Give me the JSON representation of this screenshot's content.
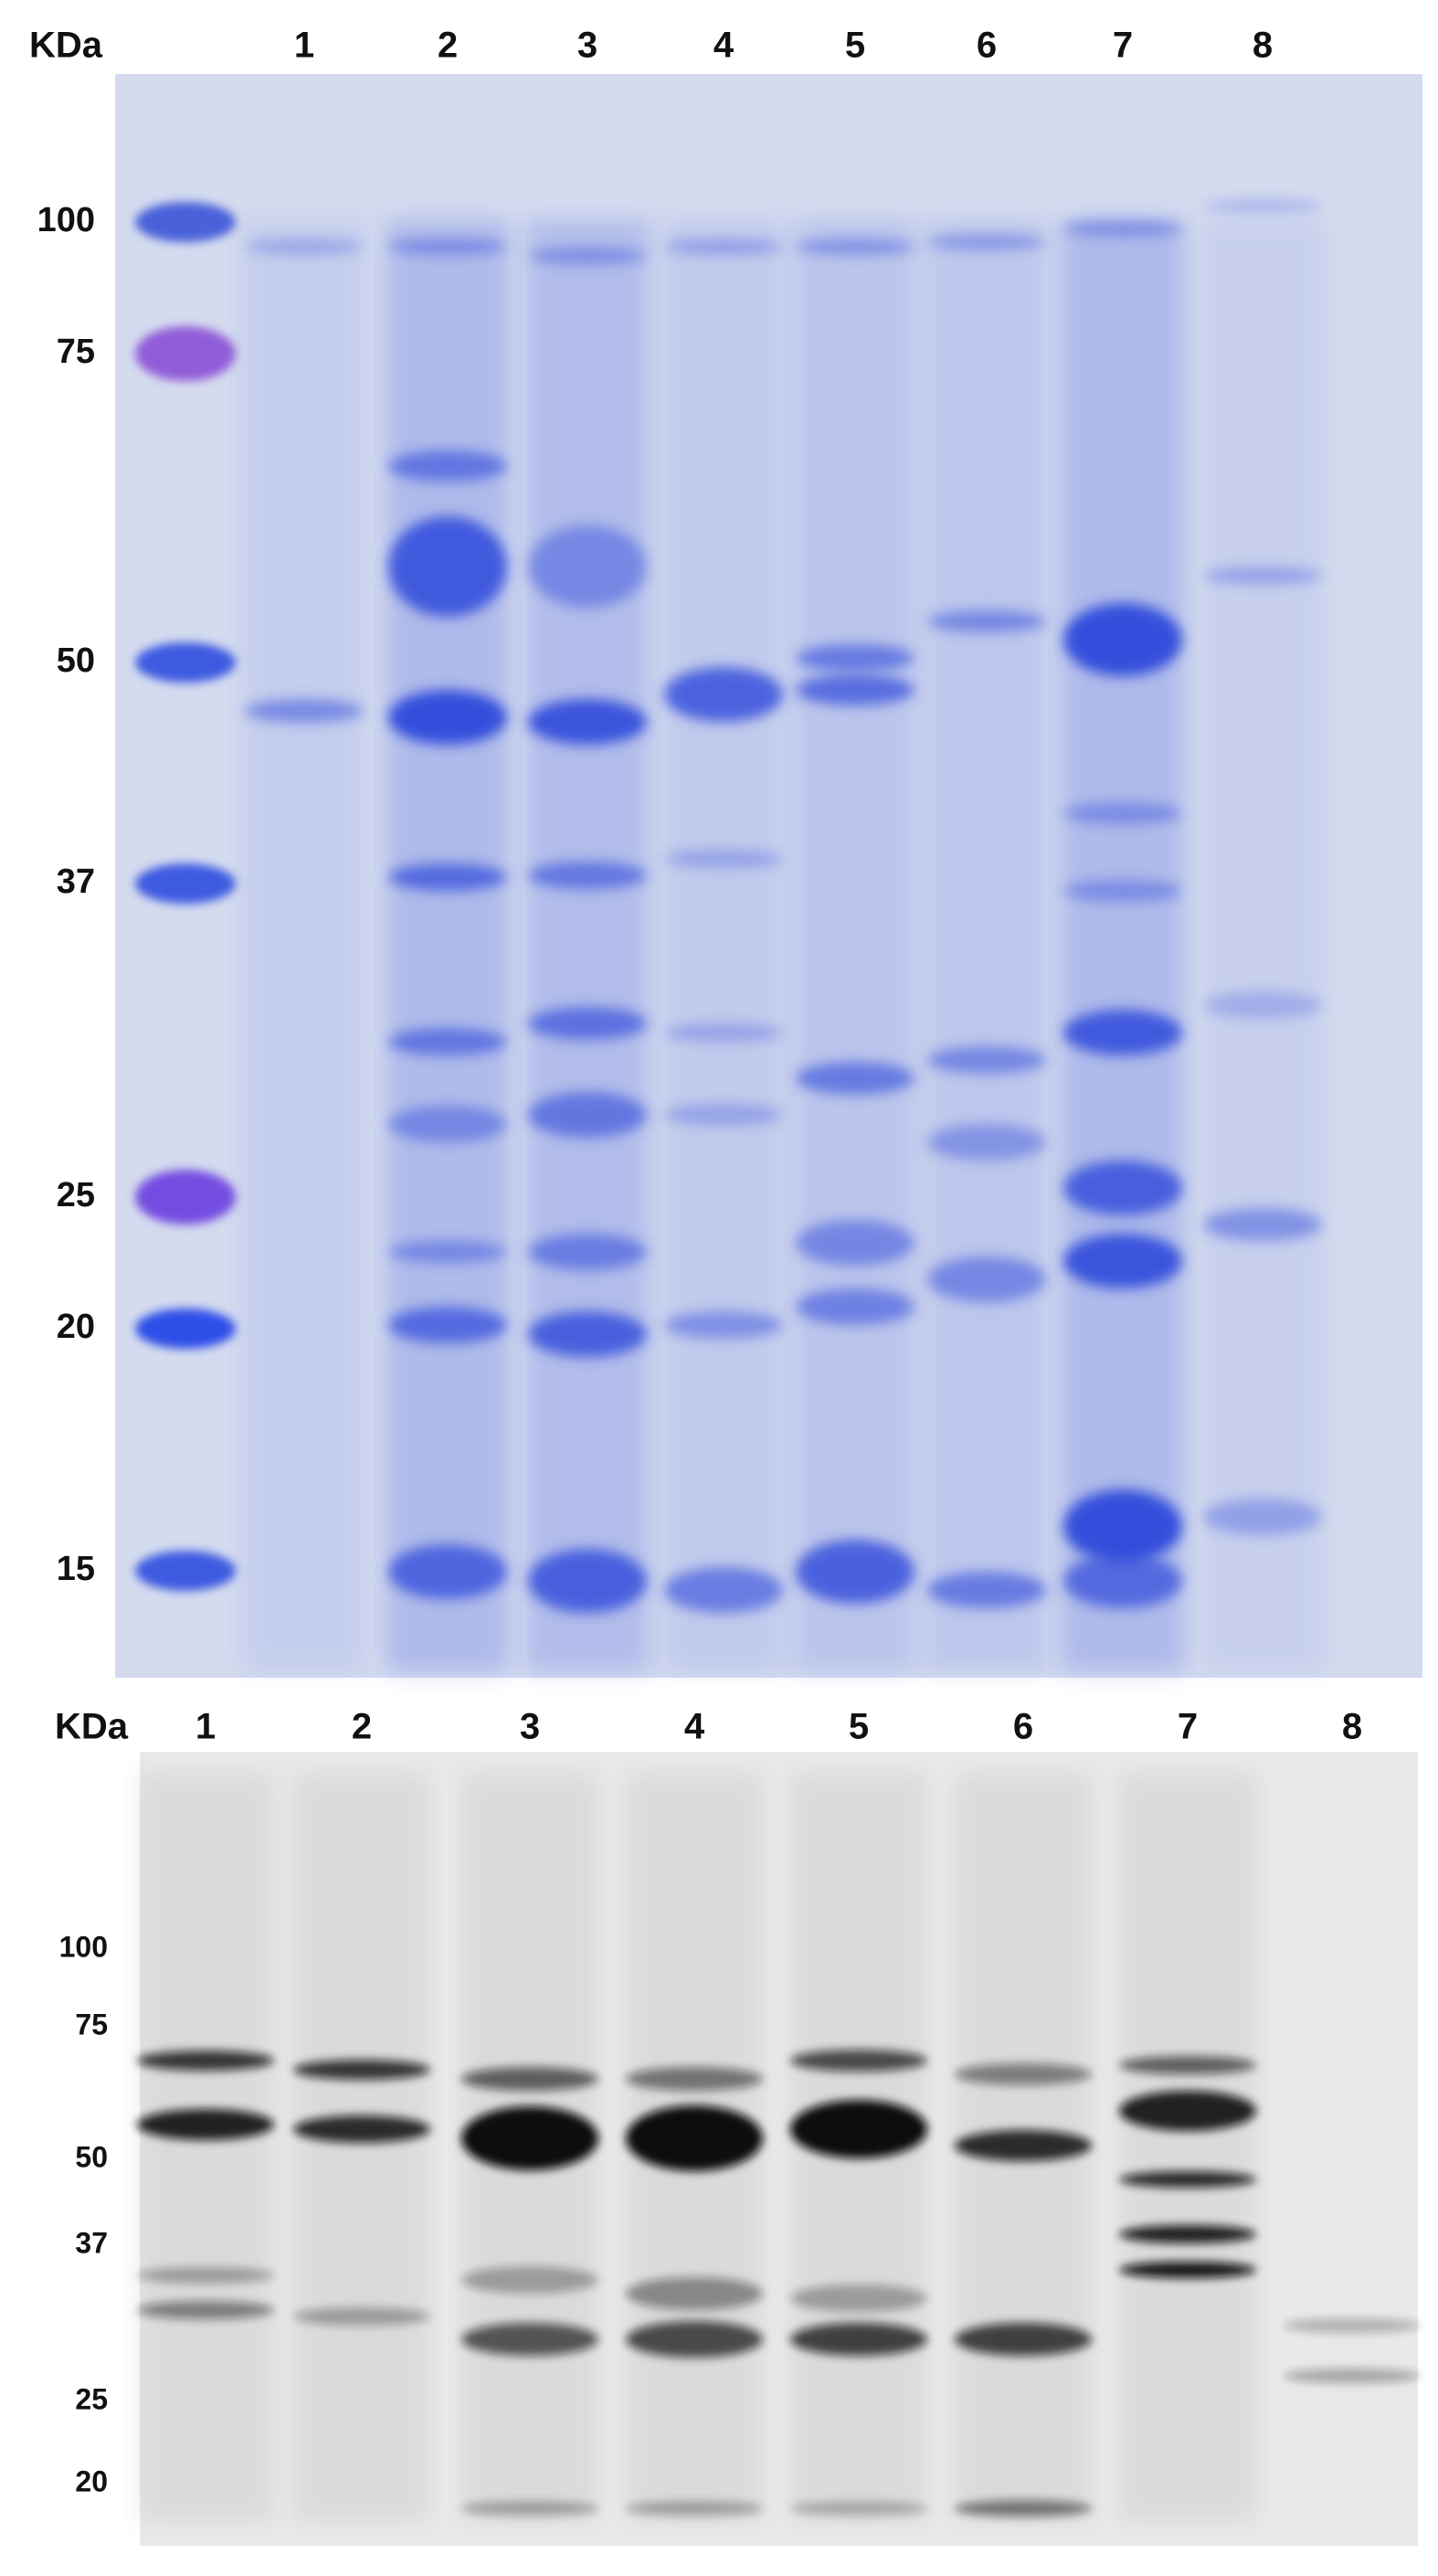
{
  "gels": [
    {
      "header_label": "KDa",
      "lanes": [
        "1",
        "2",
        "3",
        "4",
        "5",
        "6",
        "7",
        "8"
      ],
      "markers": [
        "100",
        "75",
        "50",
        "37",
        "25",
        "20",
        "15"
      ]
    },
    {
      "header_label": "KDa",
      "lanes": [
        "1",
        "2",
        "3",
        "4",
        "5",
        "6",
        "7",
        "8"
      ],
      "markers": [
        "100",
        "75",
        "50",
        "37",
        "25",
        "20"
      ]
    }
  ]
}
